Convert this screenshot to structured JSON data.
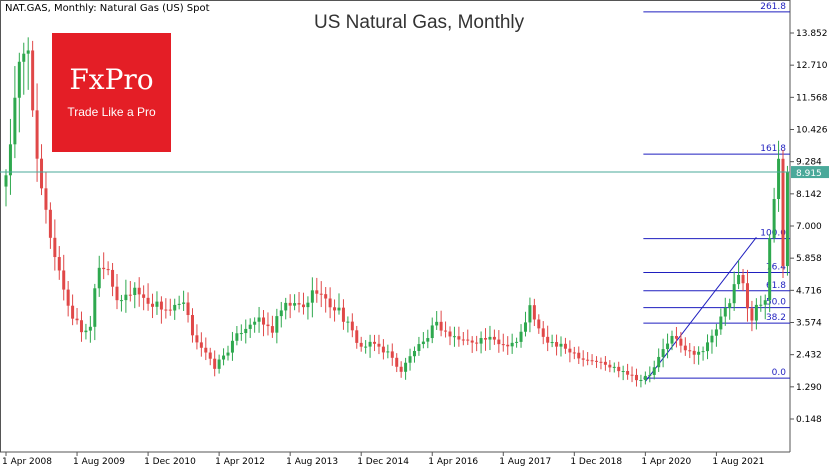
{
  "header": {
    "symbol_text": "NAT.GAS, Monthly:  Natural Gas (US) Spot"
  },
  "title": "US Natural Gas, Monthly",
  "logo": {
    "brand": "FxPro",
    "slogan": "Trade Like a Pro",
    "color": "#e41e26"
  },
  "colors": {
    "bull": "#2ea84e",
    "bear": "#e04848",
    "fib": "#1f1fbf",
    "current": "#4aa99a",
    "price_tag": "#4aa99a"
  },
  "chart_data": {
    "type": "candlestick",
    "title": "US Natural Gas, Monthly",
    "ylim": [
      -0.4,
      14.4
    ],
    "y_ticks": [
      "13.852",
      "12.710",
      "11.568",
      "10.426",
      "9.284",
      "8.142",
      "7.000",
      "5.858",
      "4.716",
      "3.574",
      "2.432",
      "1.290",
      "0.148"
    ],
    "x_ticks": [
      "1 Apr 2008",
      "1 Aug 2009",
      "1 Dec 2010",
      "1 Apr 2012",
      "1 Aug 2013",
      "1 Dec 2014",
      "1 Apr 2016",
      "1 Aug 2017",
      "1 Dec 2018",
      "1 Apr 2020",
      "1 Aug 2021"
    ],
    "current_price": {
      "value": 8.915,
      "label": "8.915"
    },
    "fibonacci": {
      "levels": [
        {
          "label": "261.8",
          "value": 14.6
        },
        {
          "label": "161.8",
          "value": 9.55
        },
        {
          "label": "100.0",
          "value": 6.55
        },
        {
          "label": "76.4",
          "value": 5.35
        },
        {
          "label": "61.8",
          "value": 4.7
        },
        {
          "label": "50.0",
          "value": 4.1
        },
        {
          "label": "38.2",
          "value": 3.55
        },
        {
          "label": "0.0",
          "value": 1.6
        }
      ],
      "trend_from": {
        "month_index": 144,
        "value": 1.48
      },
      "trend_to": {
        "month_index": 169,
        "value": 6.6
      },
      "start_month_index": 144
    },
    "anchors": [
      [
        0,
        8.8
      ],
      [
        3,
        12.5
      ],
      [
        5,
        13.4
      ],
      [
        6,
        11.5
      ],
      [
        7,
        9.0
      ],
      [
        9,
        7.4
      ],
      [
        11,
        6.0
      ],
      [
        13,
        4.8
      ],
      [
        14,
        4.2
      ],
      [
        15,
        3.8
      ],
      [
        17,
        3.3
      ],
      [
        19,
        3.4
      ],
      [
        20,
        5.0
      ],
      [
        21,
        5.6
      ],
      [
        23,
        5.6
      ],
      [
        25,
        4.2
      ],
      [
        27,
        4.5
      ],
      [
        29,
        4.8
      ],
      [
        31,
        4.4
      ],
      [
        34,
        4.2
      ],
      [
        37,
        4.0
      ],
      [
        40,
        4.2
      ],
      [
        42,
        3.2
      ],
      [
        44,
        2.7
      ],
      [
        46,
        2.2
      ],
      [
        47,
        2.0
      ],
      [
        50,
        2.6
      ],
      [
        53,
        3.3
      ],
      [
        56,
        3.7
      ],
      [
        58,
        3.5
      ],
      [
        60,
        3.3
      ],
      [
        62,
        4.0
      ],
      [
        64,
        4.2
      ],
      [
        67,
        4.1
      ],
      [
        69,
        4.6
      ],
      [
        70,
        4.8
      ],
      [
        72,
        4.3
      ],
      [
        75,
        4.0
      ],
      [
        78,
        3.2
      ],
      [
        80,
        2.7
      ],
      [
        83,
        2.8
      ],
      [
        86,
        2.5
      ],
      [
        89,
        1.85
      ],
      [
        92,
        2.6
      ],
      [
        95,
        2.9
      ],
      [
        96,
        3.6
      ],
      [
        98,
        3.4
      ],
      [
        100,
        3.1
      ],
      [
        104,
        2.9
      ],
      [
        108,
        3.0
      ],
      [
        112,
        2.8
      ],
      [
        115,
        2.9
      ],
      [
        117,
        3.5
      ],
      [
        118,
        4.3
      ],
      [
        119,
        3.6
      ],
      [
        121,
        3.0
      ],
      [
        124,
        2.75
      ],
      [
        127,
        2.6
      ],
      [
        130,
        2.3
      ],
      [
        133,
        2.2
      ],
      [
        136,
        2.0
      ],
      [
        139,
        1.9
      ],
      [
        141,
        1.7
      ],
      [
        143,
        1.55
      ],
      [
        145,
        1.7
      ],
      [
        147,
        2.3
      ],
      [
        149,
        2.8
      ],
      [
        150,
        3.2
      ],
      [
        152,
        2.7
      ],
      [
        154,
        2.5
      ],
      [
        157,
        2.6
      ],
      [
        159,
        3.0
      ],
      [
        161,
        3.7
      ],
      [
        163,
        4.2
      ],
      [
        165,
        5.5
      ],
      [
        166,
        5.0
      ],
      [
        167,
        4.0
      ],
      [
        168,
        3.7
      ],
      [
        169,
        4.3
      ],
      [
        171,
        4.4
      ],
      [
        172,
        6.3
      ],
      [
        173,
        8.0
      ],
      [
        174,
        9.4
      ],
      [
        175,
        5.6
      ],
      [
        176,
        8.9
      ]
    ]
  }
}
